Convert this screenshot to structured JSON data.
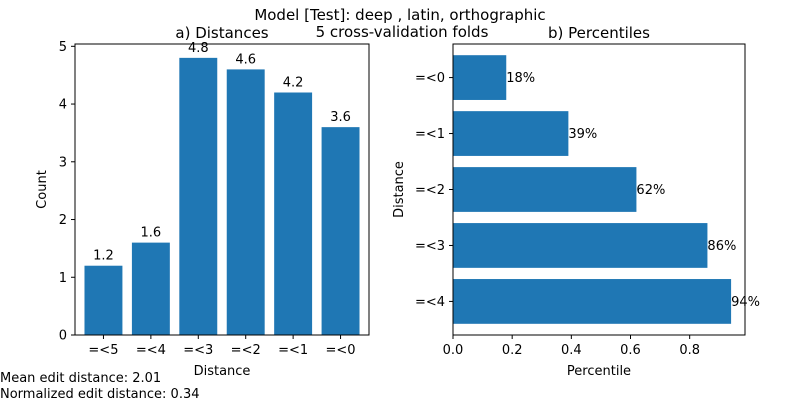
{
  "figure": {
    "suptitle_line1": "Model [Test]: deep , latin, orthographic",
    "suptitle_line2": "5 cross-validation folds"
  },
  "stats": {
    "mean_label": "Mean edit distance: 2.01",
    "normalized_label": "Normalized edit distance: 0.34"
  },
  "colors": {
    "bar": "#1f77b4",
    "axis": "#000000"
  },
  "chart_data": [
    {
      "type": "bar",
      "title": "a) Distances",
      "xlabel": "Distance",
      "ylabel": "Count",
      "categories": [
        "=<5",
        "=<4",
        "=<3",
        "=<2",
        "=<1",
        "=<0"
      ],
      "values": [
        1.2,
        1.6,
        4.8,
        4.6,
        4.2,
        3.6
      ],
      "data_labels": [
        "1.2",
        "1.6",
        "4.8",
        "4.6",
        "4.2",
        "3.6"
      ],
      "ylim": [
        0,
        5.04
      ],
      "yticks": [
        0,
        1,
        2,
        3,
        4,
        5
      ],
      "grid": false,
      "legend": "none"
    },
    {
      "type": "bar",
      "orientation": "horizontal",
      "title": "b) Percentiles",
      "xlabel": "Percentile",
      "ylabel": "Distance",
      "categories": [
        "=<0",
        "=<1",
        "=<2",
        "=<3",
        "=<4"
      ],
      "values": [
        0.18,
        0.39,
        0.62,
        0.86,
        0.94
      ],
      "data_labels": [
        "18%",
        "39%",
        "62%",
        "86%",
        "94%"
      ],
      "xlim": [
        0,
        0.987
      ],
      "xticks": [
        0.0,
        0.2,
        0.4,
        0.6,
        0.8
      ],
      "xtick_labels": [
        "0.0",
        "0.2",
        "0.4",
        "0.6",
        "0.8"
      ],
      "grid": false,
      "legend": "none"
    }
  ]
}
